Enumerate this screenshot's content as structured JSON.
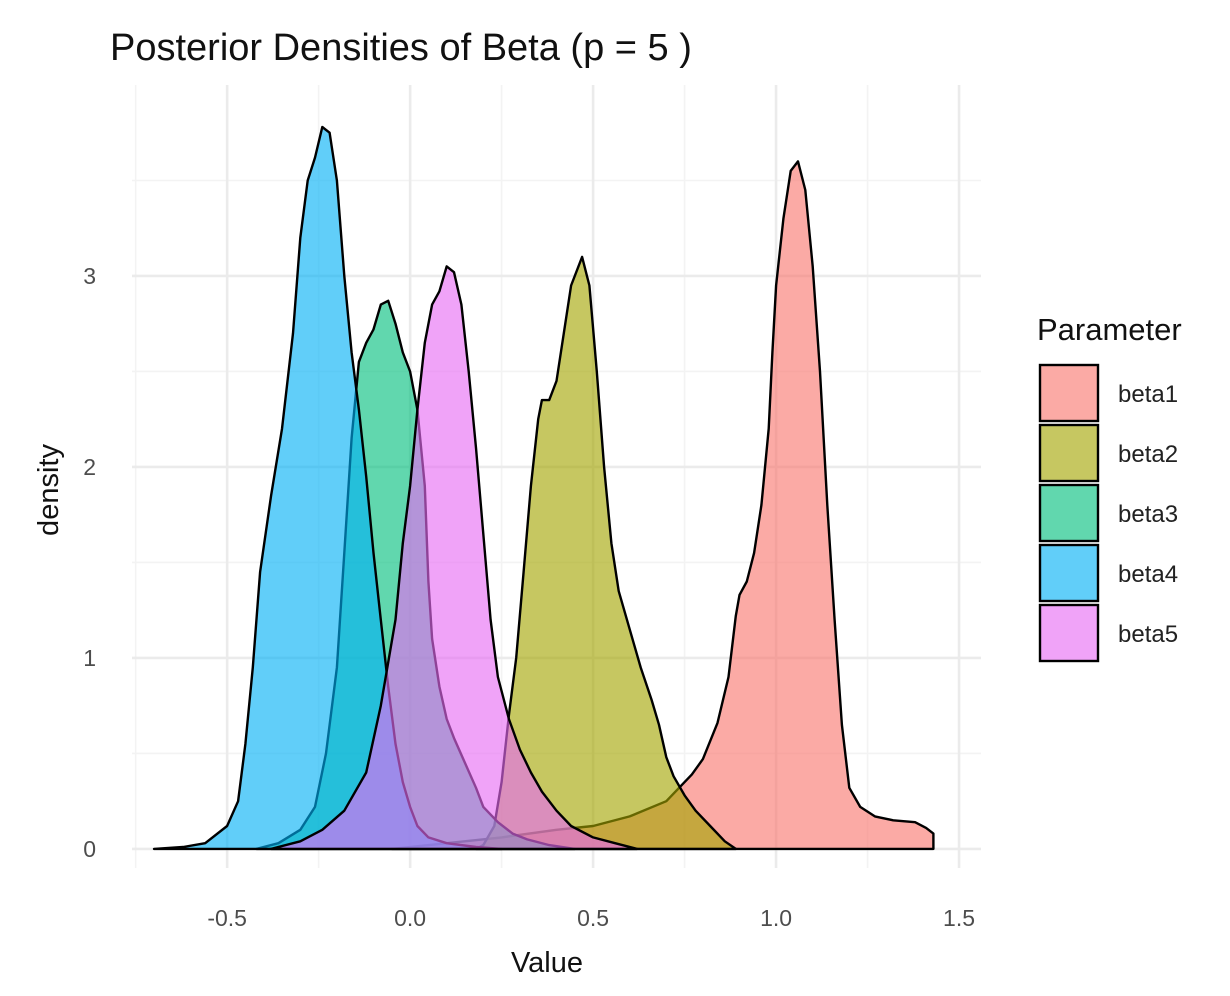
{
  "chart_data": {
    "type": "area",
    "title": "Posterior Densities of Beta (p = 5 )",
    "xlabel": "Value",
    "ylabel": "density",
    "xlim": [
      -0.76,
      1.56
    ],
    "ylim": [
      -0.1,
      4.0
    ],
    "x_ticks": [
      -0.5,
      0.0,
      0.5,
      1.0,
      1.5
    ],
    "x_tick_labels": [
      "-0.5",
      "0.0",
      "0.5",
      "1.0",
      "1.5"
    ],
    "x_minor_ticks": [
      -0.75,
      -0.25,
      0.25,
      0.75,
      1.25
    ],
    "y_ticks": [
      0,
      1,
      2,
      3
    ],
    "y_tick_labels": [
      "0",
      "1",
      "2",
      "3"
    ],
    "y_minor_ticks": [
      0.5,
      1.5,
      2.5,
      3.5
    ],
    "grid": true,
    "legend": {
      "title": "Parameter",
      "position": "right"
    },
    "series": [
      {
        "name": "beta1",
        "color": "#F8766D",
        "points": [
          [
            -0.05,
            0
          ],
          [
            0.1,
            0.03
          ],
          [
            0.25,
            0.06
          ],
          [
            0.4,
            0.1
          ],
          [
            0.5,
            0.12
          ],
          [
            0.6,
            0.17
          ],
          [
            0.7,
            0.25
          ],
          [
            0.77,
            0.39
          ],
          [
            0.8,
            0.47
          ],
          [
            0.84,
            0.66
          ],
          [
            0.87,
            0.9
          ],
          [
            0.89,
            1.22
          ],
          [
            0.9,
            1.33
          ],
          [
            0.92,
            1.4
          ],
          [
            0.94,
            1.55
          ],
          [
            0.96,
            1.8
          ],
          [
            0.98,
            2.2
          ],
          [
            0.99,
            2.6
          ],
          [
            1.0,
            2.95
          ],
          [
            1.02,
            3.3
          ],
          [
            1.04,
            3.55
          ],
          [
            1.06,
            3.6
          ],
          [
            1.08,
            3.45
          ],
          [
            1.1,
            3.05
          ],
          [
            1.12,
            2.5
          ],
          [
            1.14,
            1.8
          ],
          [
            1.16,
            1.2
          ],
          [
            1.18,
            0.65
          ],
          [
            1.2,
            0.32
          ],
          [
            1.23,
            0.22
          ],
          [
            1.27,
            0.17
          ],
          [
            1.32,
            0.15
          ],
          [
            1.38,
            0.14
          ],
          [
            1.41,
            0.11
          ],
          [
            1.43,
            0.08
          ],
          [
            1.43,
            0
          ]
        ]
      },
      {
        "name": "beta2",
        "color": "#A3A500",
        "points": [
          [
            0.18,
            0
          ],
          [
            0.2,
            0.02
          ],
          [
            0.23,
            0.12
          ],
          [
            0.25,
            0.35
          ],
          [
            0.27,
            0.7
          ],
          [
            0.29,
            1.0
          ],
          [
            0.31,
            1.45
          ],
          [
            0.33,
            1.9
          ],
          [
            0.35,
            2.25
          ],
          [
            0.36,
            2.35
          ],
          [
            0.38,
            2.35
          ],
          [
            0.4,
            2.45
          ],
          [
            0.42,
            2.7
          ],
          [
            0.44,
            2.95
          ],
          [
            0.47,
            3.1
          ],
          [
            0.49,
            2.95
          ],
          [
            0.51,
            2.5
          ],
          [
            0.53,
            2.0
          ],
          [
            0.55,
            1.6
          ],
          [
            0.57,
            1.35
          ],
          [
            0.6,
            1.15
          ],
          [
            0.63,
            0.95
          ],
          [
            0.66,
            0.78
          ],
          [
            0.68,
            0.65
          ],
          [
            0.7,
            0.48
          ],
          [
            0.72,
            0.38
          ],
          [
            0.75,
            0.28
          ],
          [
            0.78,
            0.2
          ],
          [
            0.82,
            0.12
          ],
          [
            0.86,
            0.04
          ],
          [
            0.89,
            0
          ]
        ]
      },
      {
        "name": "beta3",
        "color": "#00BF7D",
        "points": [
          [
            -0.42,
            0
          ],
          [
            -0.36,
            0.03
          ],
          [
            -0.3,
            0.1
          ],
          [
            -0.26,
            0.22
          ],
          [
            -0.23,
            0.5
          ],
          [
            -0.2,
            0.95
          ],
          [
            -0.18,
            1.55
          ],
          [
            -0.16,
            2.15
          ],
          [
            -0.14,
            2.55
          ],
          [
            -0.12,
            2.65
          ],
          [
            -0.1,
            2.72
          ],
          [
            -0.08,
            2.85
          ],
          [
            -0.06,
            2.87
          ],
          [
            -0.04,
            2.75
          ],
          [
            -0.02,
            2.6
          ],
          [
            0.0,
            2.5
          ],
          [
            0.02,
            2.3
          ],
          [
            0.04,
            1.9
          ],
          [
            0.05,
            1.4
          ],
          [
            0.06,
            1.1
          ],
          [
            0.08,
            0.85
          ],
          [
            0.1,
            0.68
          ],
          [
            0.12,
            0.58
          ],
          [
            0.15,
            0.45
          ],
          [
            0.18,
            0.32
          ],
          [
            0.2,
            0.22
          ],
          [
            0.24,
            0.14
          ],
          [
            0.28,
            0.08
          ],
          [
            0.32,
            0.05
          ],
          [
            0.38,
            0.02
          ],
          [
            0.45,
            0
          ]
        ]
      },
      {
        "name": "beta4",
        "color": "#00B0F6",
        "points": [
          [
            -0.7,
            0
          ],
          [
            -0.62,
            0.01
          ],
          [
            -0.56,
            0.03
          ],
          [
            -0.5,
            0.12
          ],
          [
            -0.47,
            0.25
          ],
          [
            -0.45,
            0.55
          ],
          [
            -0.43,
            0.95
          ],
          [
            -0.41,
            1.45
          ],
          [
            -0.38,
            1.85
          ],
          [
            -0.35,
            2.2
          ],
          [
            -0.32,
            2.7
          ],
          [
            -0.3,
            3.2
          ],
          [
            -0.28,
            3.5
          ],
          [
            -0.26,
            3.62
          ],
          [
            -0.24,
            3.78
          ],
          [
            -0.22,
            3.75
          ],
          [
            -0.2,
            3.5
          ],
          [
            -0.18,
            3.0
          ],
          [
            -0.16,
            2.6
          ],
          [
            -0.14,
            2.3
          ],
          [
            -0.12,
            1.95
          ],
          [
            -0.1,
            1.55
          ],
          [
            -0.08,
            1.2
          ],
          [
            -0.06,
            0.85
          ],
          [
            -0.04,
            0.55
          ],
          [
            -0.02,
            0.35
          ],
          [
            0.0,
            0.22
          ],
          [
            0.02,
            0.12
          ],
          [
            0.05,
            0.06
          ],
          [
            0.1,
            0.03
          ],
          [
            0.18,
            0.01
          ],
          [
            0.25,
            0
          ]
        ]
      },
      {
        "name": "beta5",
        "color": "#E76BF3",
        "points": [
          [
            -0.38,
            0
          ],
          [
            -0.3,
            0.04
          ],
          [
            -0.24,
            0.1
          ],
          [
            -0.18,
            0.2
          ],
          [
            -0.12,
            0.4
          ],
          [
            -0.08,
            0.75
          ],
          [
            -0.04,
            1.2
          ],
          [
            -0.02,
            1.6
          ],
          [
            0.0,
            1.9
          ],
          [
            0.02,
            2.3
          ],
          [
            0.04,
            2.65
          ],
          [
            0.06,
            2.85
          ],
          [
            0.08,
            2.92
          ],
          [
            0.1,
            3.05
          ],
          [
            0.12,
            3.02
          ],
          [
            0.14,
            2.85
          ],
          [
            0.16,
            2.5
          ],
          [
            0.18,
            2.1
          ],
          [
            0.2,
            1.65
          ],
          [
            0.22,
            1.2
          ],
          [
            0.24,
            0.9
          ],
          [
            0.27,
            0.68
          ],
          [
            0.3,
            0.52
          ],
          [
            0.33,
            0.4
          ],
          [
            0.36,
            0.3
          ],
          [
            0.4,
            0.2
          ],
          [
            0.44,
            0.12
          ],
          [
            0.5,
            0.06
          ],
          [
            0.56,
            0.03
          ],
          [
            0.62,
            0
          ]
        ]
      }
    ]
  }
}
